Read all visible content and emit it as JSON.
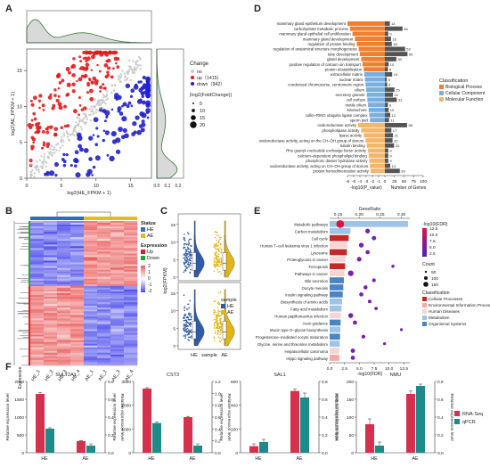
{
  "panel_letters": {
    "a": "A",
    "b": "B",
    "c": "C",
    "d": "D",
    "e": "E",
    "f": "F"
  },
  "chart_data": [
    {
      "id": "A",
      "type": "scatter",
      "xlabel": "log2(HE_FPKM + 1)",
      "ylabel": "log2(AE_FPKM + 1)",
      "xticks": [
        0,
        5,
        10,
        15
      ],
      "yticks": [
        0,
        5,
        10,
        15
      ],
      "xlim": [
        0,
        18
      ],
      "ylim": [
        0,
        18
      ],
      "legend": {
        "change_title": "Change",
        "change_items": [
          {
            "label": "no",
            "color": "#c8c8c8"
          },
          {
            "label": "up（1415）",
            "color": "#e41a1c"
          },
          {
            "label": "down（942）",
            "color": "#1f1fd0"
          }
        ],
        "size_title": "|log2(FoldChange)|",
        "size_items": [
          "5",
          "10",
          "15",
          "20"
        ]
      },
      "marginal_x_ticks": [
        "0.0",
        "0.1",
        "0.2"
      ],
      "marginal_color": "#2e7d32"
    },
    {
      "id": "B",
      "type": "heatmap",
      "columns": [
        "HE_1",
        "HE_2",
        "HE_3",
        "HE_4",
        "AE_1",
        "AE_2",
        "AE_3",
        "AE_4"
      ],
      "row_label": "Expression",
      "status_title": "Status",
      "status_items": [
        {
          "label": "HE",
          "color": "#2f6eb5"
        },
        {
          "label": "AE",
          "color": "#e8b923"
        }
      ],
      "expression_title": "Expression",
      "expression_items": [
        {
          "label": "Up",
          "color": "#e41a1c"
        },
        {
          "label": "Down",
          "color": "#1fa33a"
        }
      ],
      "colorbar_ticks": [
        "2",
        "1",
        "0",
        "-1",
        "-2"
      ]
    },
    {
      "id": "C",
      "type": "violin",
      "ylabel": "log2(FPKM)",
      "xlabel": "sample",
      "categories": [
        "HE",
        "AE"
      ],
      "yticks_top": [
        "0",
        "5",
        "10",
        "15"
      ],
      "yticks_bottom": [
        "0",
        "5",
        "10",
        "15"
      ],
      "legend_title": "sample",
      "legend_items": [
        {
          "label": "HE",
          "color": "#2f5ba8"
        },
        {
          "label": "AE",
          "color": "#e3b514"
        }
      ]
    },
    {
      "id": "D",
      "type": "bar",
      "xlabel_left": "-log10(P_value)",
      "xlabel_right": "Number of Genes",
      "xticks_left": [
        "-6",
        "-5",
        "-4",
        "-3",
        "-2",
        "-1",
        "0"
      ],
      "xticks_right": [
        "0",
        "25",
        "50",
        "75",
        "100"
      ],
      "legend_title": "Classification",
      "legend_items": [
        {
          "label": "Biological Process",
          "color": "#f07f2e"
        },
        {
          "label": "Cellular Component",
          "color": "#7aaede"
        },
        {
          "label": "Molecular Function",
          "color": "#f3b66b"
        }
      ],
      "terms": [
        {
          "label": "mammary gland epithelium development",
          "p": 6.0,
          "genes": 13,
          "cls": 0
        },
        {
          "label": "carbohydrate metabolic process",
          "p": 5.6,
          "genes": 46,
          "cls": 0
        },
        {
          "label": "mammary gland epithelial cell proliferation",
          "p": 5.2,
          "genes": 9,
          "cls": 0
        },
        {
          "label": "mammary gland development",
          "p": 4.8,
          "genes": 16,
          "cls": 0
        },
        {
          "label": "regulation of protein binding",
          "p": 4.5,
          "genes": 18,
          "cls": 0
        },
        {
          "label": "regulation of anatomical structure morphogenesis",
          "p": 4.2,
          "genes": 53,
          "cls": 0
        },
        {
          "label": "tube development",
          "p": 4.0,
          "genes": 59,
          "cls": 0
        },
        {
          "label": "gland development",
          "p": 3.8,
          "genes": 30,
          "cls": 0
        },
        {
          "label": "positive regulation of calcium ion transport",
          "p": 3.6,
          "genes": 10,
          "cls": 0
        },
        {
          "label": "protein destabilization",
          "p": 3.4,
          "genes": 8,
          "cls": 0
        },
        {
          "label": "extracellular matrix",
          "p": 3.3,
          "genes": 19,
          "cls": 1
        },
        {
          "label": "nuclear matrix",
          "p": 3.2,
          "genes": 5,
          "cls": 1
        },
        {
          "label": "condensed chromosome, centromeric region",
          "p": 3.1,
          "genes": 6,
          "cls": 1
        },
        {
          "label": "cilium",
          "p": 3.0,
          "genes": 25,
          "cls": 1
        },
        {
          "label": "secretory granule",
          "p": 2.9,
          "genes": 21,
          "cls": 1
        },
        {
          "label": "cell surface",
          "p": 2.8,
          "genes": 31,
          "cls": 1
        },
        {
          "label": "motile cilium",
          "p": 2.7,
          "genes": 8,
          "cls": 1
        },
        {
          "label": "kinetochore",
          "p": 2.6,
          "genes": 10,
          "cls": 1
        },
        {
          "label": "cullin–RING ubiquitin ligase complex",
          "p": 2.5,
          "genes": 14,
          "cls": 1
        },
        {
          "label": "sperm part",
          "p": 2.4,
          "genes": 11,
          "cls": 1
        },
        {
          "label": "oxidoreductase activity",
          "p": 4.3,
          "genes": 58,
          "cls": 2
        },
        {
          "label": "phospholipase activity",
          "p": 3.8,
          "genes": 17,
          "cls": 2
        },
        {
          "label": "lipase activity",
          "p": 3.4,
          "genes": 21,
          "cls": 2
        },
        {
          "label": "oxidoreductase activity, acting on the CH–OH group of donors",
          "p": 3.1,
          "genes": 20,
          "cls": 2
        },
        {
          "label": "tubulin binding",
          "p": 2.9,
          "genes": 24,
          "cls": 2
        },
        {
          "label": "Rho guanyl–nucleotide exchange factor activity",
          "p": 2.7,
          "genes": 9,
          "cls": 2
        },
        {
          "label": "calcium–dependent phospholipid binding",
          "p": 2.6,
          "genes": 9,
          "cls": 2
        },
        {
          "label": "phosphoric diester hydrolase activity",
          "p": 2.5,
          "genes": 9,
          "cls": 2
        },
        {
          "label": "oxidoreductase activity, acting on CH–OH group of donors",
          "p": 2.4,
          "genes": 14,
          "cls": 2
        },
        {
          "label": "protein homodimerization activity",
          "p": 2.3,
          "genes": 39,
          "cls": 2
        }
      ]
    },
    {
      "id": "E",
      "type": "scatter",
      "top_axis_title": "GeneRatio",
      "top_ticks": [
        "0.15",
        "0.20",
        "0.25",
        "0.30"
      ],
      "top_values": [
        0.15,
        0.2,
        0.25,
        0.3
      ],
      "bottom_axis_title": "-log10(FDR)",
      "bottom_ticks": [
        "0.0",
        "2.5",
        "5.0",
        "7.5",
        "10.0",
        "12.5"
      ],
      "fdr_title": "-log10(FDR)",
      "fdr_ticks": [
        "12.5",
        "10.0",
        "7.5",
        "5.0",
        "2.5"
      ],
      "count_title": "Count",
      "count_items": [
        "50",
        "100",
        "150"
      ],
      "class_title": "Classification",
      "class_items": [
        {
          "label": "Cellular Processes",
          "color": "#c62828"
        },
        {
          "label": "Environmental Information Processing",
          "color": "#f4a8a8"
        },
        {
          "label": "Human Diseases",
          "color": "#f8d4d4"
        },
        {
          "label": "Metabolism",
          "color": "#9ec5e8"
        },
        {
          "label": "Organismal Systems",
          "color": "#4a84c3"
        }
      ],
      "pathways": [
        {
          "label": "Metabolic pathways",
          "fdr": 13.2,
          "ratio": 0.155,
          "cls": 3,
          "count": 160
        },
        {
          "label": "Carbon metabolism",
          "fdr": 3.5,
          "ratio": 0.22,
          "cls": 3,
          "count": 40
        },
        {
          "label": "Cell cycle",
          "fdr": 3.2,
          "ratio": 0.235,
          "cls": 0,
          "count": 35
        },
        {
          "label": "Human T–cell leukemia virus 1 infection",
          "fdr": 3.0,
          "ratio": 0.205,
          "cls": 2,
          "count": 45
        },
        {
          "label": "Lysosome",
          "fdr": 2.9,
          "ratio": 0.22,
          "cls": 0,
          "count": 30
        },
        {
          "label": "Proteoglycans in cancer",
          "fdr": 2.7,
          "ratio": 0.2,
          "cls": 2,
          "count": 40
        },
        {
          "label": "Ferroptosis",
          "fdr": 2.6,
          "ratio": 0.28,
          "cls": 0,
          "count": 12
        },
        {
          "label": "Pathways in cancer",
          "fdr": 2.5,
          "ratio": 0.18,
          "cls": 2,
          "count": 70
        },
        {
          "label": "Bile secretion",
          "fdr": 2.4,
          "ratio": 0.235,
          "cls": 4,
          "count": 22
        },
        {
          "label": "Oocyte meiosis",
          "fdr": 2.3,
          "ratio": 0.215,
          "cls": 4,
          "count": 28
        },
        {
          "label": "Insulin signaling pathway",
          "fdr": 2.2,
          "ratio": 0.205,
          "cls": 4,
          "count": 30
        },
        {
          "label": "Biosynthesis of amino acids",
          "fdr": 2.1,
          "ratio": 0.225,
          "cls": 3,
          "count": 20
        },
        {
          "label": "Fatty acid metabolism",
          "fdr": 2.0,
          "ratio": 0.24,
          "cls": 3,
          "count": 15
        },
        {
          "label": "Human papillomavirus infection",
          "fdr": 1.9,
          "ratio": 0.18,
          "cls": 2,
          "count": 50
        },
        {
          "label": "Axon guidance",
          "fdr": 1.85,
          "ratio": 0.19,
          "cls": 4,
          "count": 30
        },
        {
          "label": "Mucin type O–glycan biosynthesis",
          "fdr": 1.8,
          "ratio": 0.3,
          "cls": 3,
          "count": 8
        },
        {
          "label": "Progesterone–mediated oocyte maturation",
          "fdr": 1.75,
          "ratio": 0.21,
          "cls": 4,
          "count": 22
        },
        {
          "label": "Glycine, serine and threonine metabolism",
          "fdr": 1.7,
          "ratio": 0.26,
          "cls": 3,
          "count": 10
        },
        {
          "label": "Hepatocellular carcinoma",
          "fdr": 1.65,
          "ratio": 0.185,
          "cls": 2,
          "count": 35
        },
        {
          "label": "Hippo signaling pathway",
          "fdr": 1.6,
          "ratio": 0.185,
          "cls": 1,
          "count": 30
        }
      ]
    },
    {
      "id": "F",
      "type": "bar",
      "ylabel_left": "Relative expression level",
      "ylabel_right": "Relative expression level",
      "legend_items": [
        {
          "label": "RNA-Seq",
          "color": "#d6304f"
        },
        {
          "label": "qPCR",
          "color": "#1e8a8a"
        }
      ],
      "categories": [
        "HE",
        "AE"
      ],
      "subplots": [
        {
          "title": "SULT2A1",
          "left_max": 2000,
          "left_ticks": [
            0,
            500,
            1000,
            1500,
            2000
          ],
          "right_max": 0.8,
          "right_ticks": [
            0.0,
            0.2,
            0.4,
            0.6,
            0.8
          ],
          "rna": [
            1650,
            330
          ],
          "rna_err": [
            40,
            15
          ],
          "qpcr": [
            0.27,
            0.08
          ],
          "qpcr_err": [
            0.01,
            0.02
          ]
        },
        {
          "title": "CST3",
          "left_max": 3000,
          "left_ticks": [
            0,
            1000,
            2000,
            3000
          ],
          "right_max": 1.2,
          "right_ticks": [
            0.0,
            0.2,
            0.4,
            0.6,
            0.8,
            1.0,
            1.2
          ],
          "rna": [
            2700,
            1500
          ],
          "rna_err": [
            40,
            30
          ],
          "qpcr": [
            0.5,
            0.12
          ],
          "qpcr_err": [
            0.02,
            0.03
          ]
        },
        {
          "title": "SAL1",
          "left_max": 600,
          "left_ticks": [
            0,
            200,
            400,
            600
          ],
          "right_max": 0.8,
          "right_ticks": [
            0.0,
            0.2,
            0.4,
            0.6,
            0.8
          ],
          "rna": [
            55,
            520
          ],
          "rna_err": [
            20,
            15
          ],
          "qpcr": [
            0.12,
            0.62
          ],
          "qpcr_err": [
            0.03,
            0.05
          ]
        },
        {
          "title": "NMU",
          "left_max": 200,
          "left_ticks": [
            0,
            50,
            100,
            150,
            200
          ],
          "right_max": 0.8,
          "right_ticks": [
            0.0,
            0.2,
            0.4,
            0.6,
            0.8
          ],
          "rna": [
            80,
            165
          ],
          "rna_err": [
            15,
            8
          ],
          "qpcr": [
            0.08,
            0.75
          ],
          "qpcr_err": [
            0.04,
            0.02
          ]
        }
      ]
    }
  ]
}
